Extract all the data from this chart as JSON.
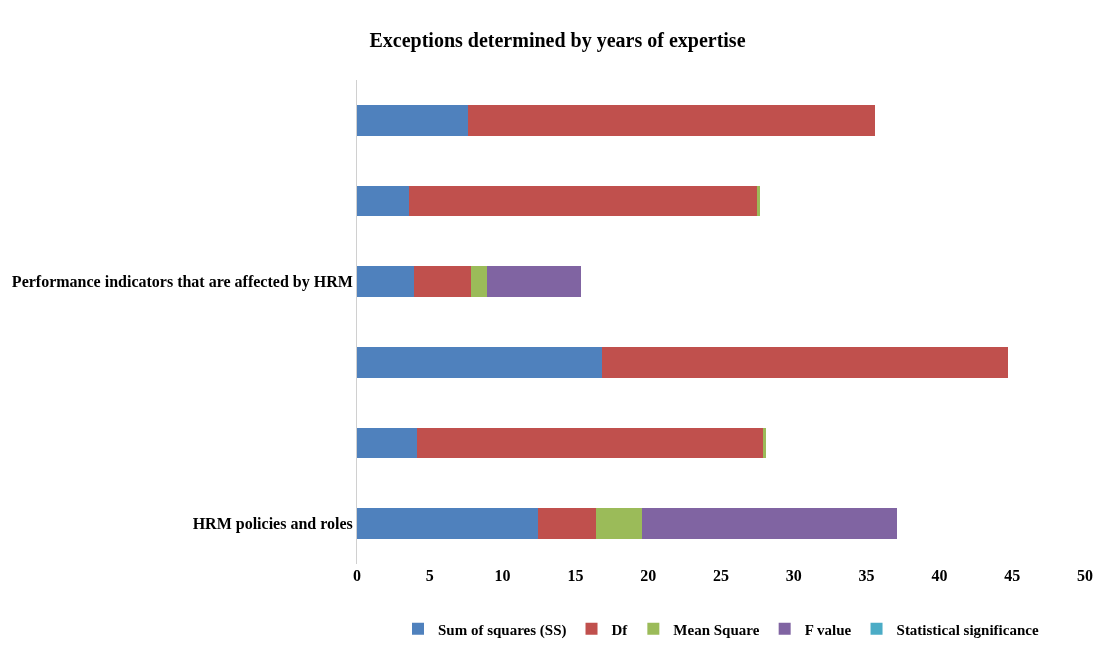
{
  "chart_data": {
    "type": "bar",
    "orientation": "horizontal",
    "stacked": true,
    "title": "Exceptions determined by years of expertise",
    "categories": [
      null,
      null,
      "Performance indicators that are affected by HRM",
      null,
      null,
      "HRM policies and roles"
    ],
    "series": [
      {
        "name": "Sum of squares (SS)",
        "color": "#4f81bd",
        "values": [
          7.6,
          3.6,
          3.9,
          16.8,
          4.1,
          12.4
        ]
      },
      {
        "name": "Df",
        "color": "#c0504d",
        "values": [
          28.0,
          23.9,
          3.9,
          27.9,
          23.8,
          4.0
        ]
      },
      {
        "name": "Mean Square",
        "color": "#9bbb59",
        "values": [
          0,
          0.2,
          1.1,
          0,
          0.2,
          3.2
        ]
      },
      {
        "name": "F value",
        "color": "#8064a2",
        "values": [
          0,
          0,
          6.5,
          0,
          0,
          17.5
        ]
      },
      {
        "name": "Statistical significance",
        "color": "#4bacc6",
        "values": [
          0,
          0,
          0,
          0,
          0,
          0
        ]
      }
    ],
    "xlim": [
      0,
      50
    ],
    "xticks": [
      0,
      5,
      10,
      15,
      20,
      25,
      30,
      35,
      40,
      45,
      50
    ],
    "legend": "bottom"
  }
}
